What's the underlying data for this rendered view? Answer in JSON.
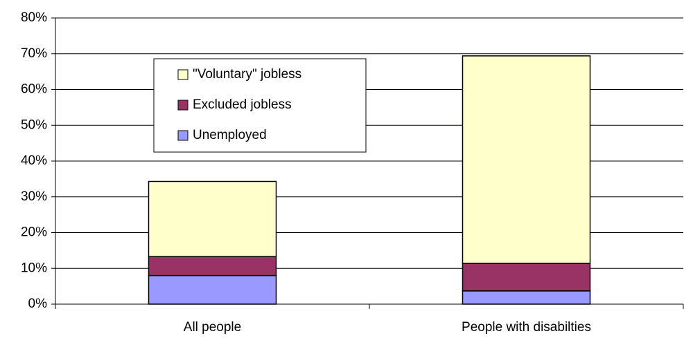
{
  "chart_data": {
    "type": "stacked_bar",
    "categories": [
      "All people",
      "People with disabilties"
    ],
    "series": [
      {
        "name": "Unemployed",
        "color": "#9999ff",
        "values": [
          8,
          3.7
        ]
      },
      {
        "name": "Excluded jobless",
        "color": "#993366",
        "values": [
          5.3,
          7.7
        ]
      },
      {
        "name": "\"Voluntary\" jobless",
        "color": "#ffffcc",
        "values": [
          21,
          58
        ]
      }
    ],
    "ylim": [
      0,
      80
    ],
    "yticks": [
      {
        "value": 0,
        "label": "0%"
      },
      {
        "value": 10,
        "label": "10%"
      },
      {
        "value": 20,
        "label": "20%"
      },
      {
        "value": 30,
        "label": "30%"
      },
      {
        "value": 40,
        "label": "40%"
      },
      {
        "value": 50,
        "label": "50%"
      },
      {
        "value": 60,
        "label": "60%"
      },
      {
        "value": 70,
        "label": "70%"
      },
      {
        "value": 80,
        "label": "80%"
      }
    ],
    "grid": true
  }
}
